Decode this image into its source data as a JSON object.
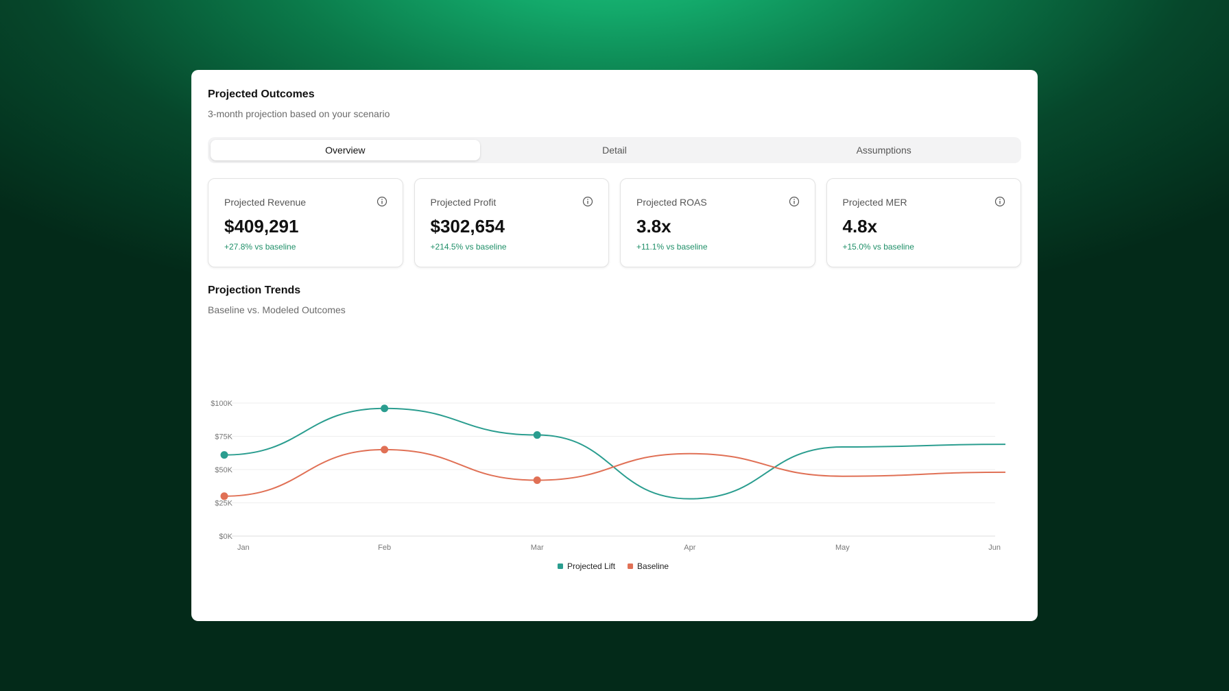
{
  "header": {
    "title": "Projected Outcomes",
    "subtitle": "3-month projection based on your scenario"
  },
  "tabs": [
    {
      "label": "Overview",
      "active": true
    },
    {
      "label": "Detail",
      "active": false
    },
    {
      "label": "Assumptions",
      "active": false
    }
  ],
  "metrics": [
    {
      "label": "Projected Revenue",
      "value": "$409,291",
      "delta": "+27.8% vs baseline",
      "icon": "info-icon"
    },
    {
      "label": "Projected Profit",
      "value": "$302,654",
      "delta": "+214.5% vs baseline",
      "icon": "info-icon"
    },
    {
      "label": "Projected ROAS",
      "value": "3.8x",
      "delta": "+11.1% vs baseline",
      "icon": "info-icon"
    },
    {
      "label": "Projected MER",
      "value": "4.8x",
      "delta": "+15.0% vs baseline",
      "icon": "info-icon"
    }
  ],
  "section": {
    "title": "Projection Trends",
    "subtitle": "Baseline vs. Modeled Outcomes"
  },
  "colors": {
    "accent_teal": "#2a9d8f",
    "accent_orange": "#e07055",
    "delta_green": "#1f8f68"
  },
  "chart_data": {
    "type": "line",
    "x": [
      "Jan",
      "Feb",
      "Mar",
      "Apr",
      "May",
      "Jun"
    ],
    "y_ticks": [
      "$0K",
      "$25K",
      "$50K",
      "$75K",
      "$100K"
    ],
    "ylim": [
      0,
      100000
    ],
    "grid": true,
    "legend_position": "bottom-center",
    "series": [
      {
        "name": "Projected Lift",
        "color": "#2a9d8f",
        "values": [
          61000,
          96000,
          76000,
          28000,
          67000,
          69000
        ],
        "markers": [
          true,
          true,
          true,
          false,
          false,
          false
        ]
      },
      {
        "name": "Baseline",
        "color": "#e07055",
        "values": [
          30000,
          65000,
          42000,
          62000,
          45000,
          48000
        ],
        "markers": [
          true,
          true,
          true,
          false,
          false,
          false
        ]
      }
    ]
  }
}
